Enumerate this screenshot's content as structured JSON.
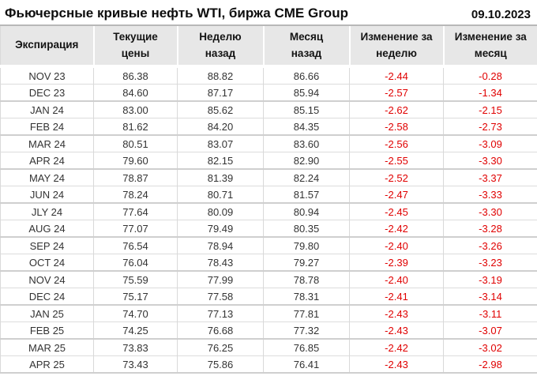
{
  "chart_data": {
    "type": "table",
    "title": "Фьючерсные кривые нефть WTI, биржа CME Group",
    "date": "09.10.2023",
    "columns": [
      "Экспирация",
      "Текущие\nцены",
      "Неделю\nназад",
      "Месяц\nназад",
      "Изменение за\nнеделю",
      "Изменение за\nмесяц"
    ],
    "rows": [
      [
        "NOV 23",
        "86.38",
        "88.82",
        "86.66",
        "-2.44",
        "-0.28"
      ],
      [
        "DEC 23",
        "84.60",
        "87.17",
        "85.94",
        "-2.57",
        "-1.34"
      ],
      [
        "JAN 24",
        "83.00",
        "85.62",
        "85.15",
        "-2.62",
        "-2.15"
      ],
      [
        "FEB 24",
        "81.62",
        "84.20",
        "84.35",
        "-2.58",
        "-2.73"
      ],
      [
        "MAR 24",
        "80.51",
        "83.07",
        "83.60",
        "-2.56",
        "-3.09"
      ],
      [
        "APR 24",
        "79.60",
        "82.15",
        "82.90",
        "-2.55",
        "-3.30"
      ],
      [
        "MAY 24",
        "78.87",
        "81.39",
        "82.24",
        "-2.52",
        "-3.37"
      ],
      [
        "JUN 24",
        "78.24",
        "80.71",
        "81.57",
        "-2.47",
        "-3.33"
      ],
      [
        "JLY 24",
        "77.64",
        "80.09",
        "80.94",
        "-2.45",
        "-3.30"
      ],
      [
        "AUG 24",
        "77.07",
        "79.49",
        "80.35",
        "-2.42",
        "-3.28"
      ],
      [
        "SEP 24",
        "76.54",
        "78.94",
        "79.80",
        "-2.40",
        "-3.26"
      ],
      [
        "OCT 24",
        "76.04",
        "78.43",
        "79.27",
        "-2.39",
        "-3.23"
      ],
      [
        "NOV 24",
        "75.59",
        "77.99",
        "78.78",
        "-2.40",
        "-3.19"
      ],
      [
        "DEC 24",
        "75.17",
        "77.58",
        "78.31",
        "-2.41",
        "-3.14"
      ],
      [
        "JAN 25",
        "74.70",
        "77.13",
        "77.81",
        "-2.43",
        "-3.11"
      ],
      [
        "FEB 25",
        "74.25",
        "76.68",
        "77.32",
        "-2.43",
        "-3.07"
      ],
      [
        "MAR 25",
        "73.83",
        "76.25",
        "76.85",
        "-2.42",
        "-3.02"
      ],
      [
        "APR 25",
        "73.43",
        "75.86",
        "76.41",
        "-2.43",
        "-2.98"
      ]
    ],
    "layout_hints": {
      "grid": true,
      "header_background": "#e7e7e7",
      "row_background": "#ffffff"
    }
  },
  "colors": {
    "negative_value": "#e00000",
    "header_bg": "#e7e7e7",
    "grid_line": "#d9d9d9",
    "text": "#333333"
  }
}
